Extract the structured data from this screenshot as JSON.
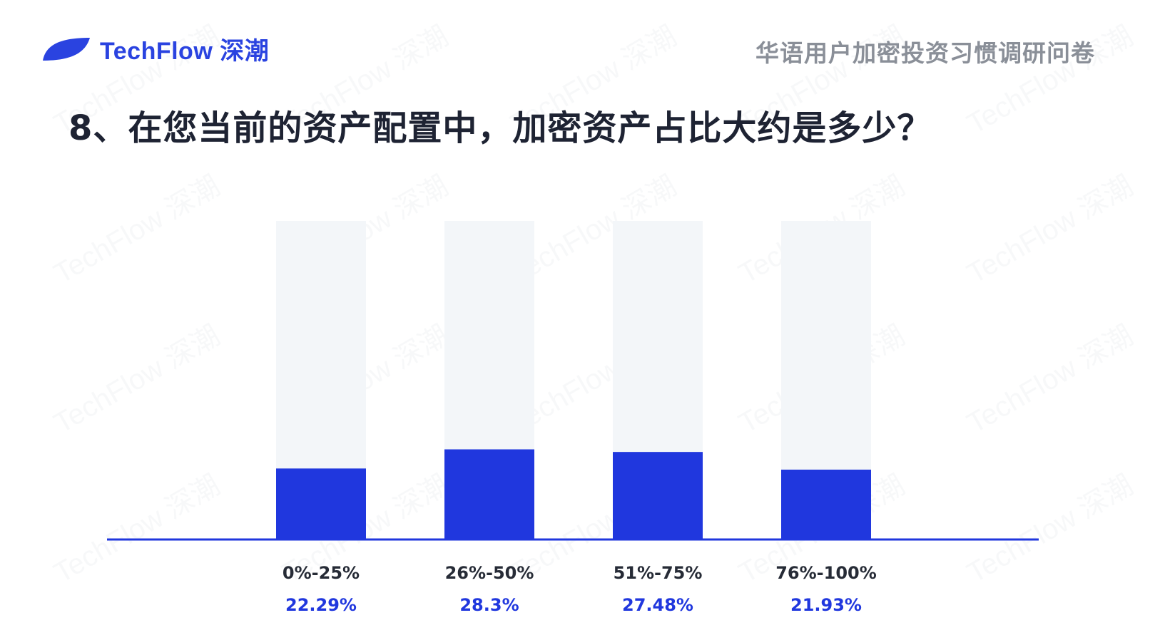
{
  "header": {
    "brand": "TechFlow 深潮",
    "report_title": "华语用户加密投资习惯调研问卷"
  },
  "question": "8、在您当前的资产配置中，加密资产占比大约是多少？",
  "watermark_text": "TechFlow 深潮",
  "colors": {
    "bar": "#2037de",
    "track": "#f3f6f9",
    "axis": "#2037de",
    "value_label": "#2037de",
    "category_label": "#262b36",
    "brand": "#2a43e0"
  },
  "chart_data": {
    "type": "bar",
    "categories": [
      "0%-25%",
      "26%-50%",
      "51%-75%",
      "76%-100%"
    ],
    "values": [
      22.29,
      28.3,
      27.48,
      21.93
    ],
    "value_labels": [
      "22.29%",
      "28.3%",
      "27.48%",
      "21.93%"
    ],
    "ylim": [
      0,
      100
    ],
    "grid": false,
    "legend": "none"
  }
}
